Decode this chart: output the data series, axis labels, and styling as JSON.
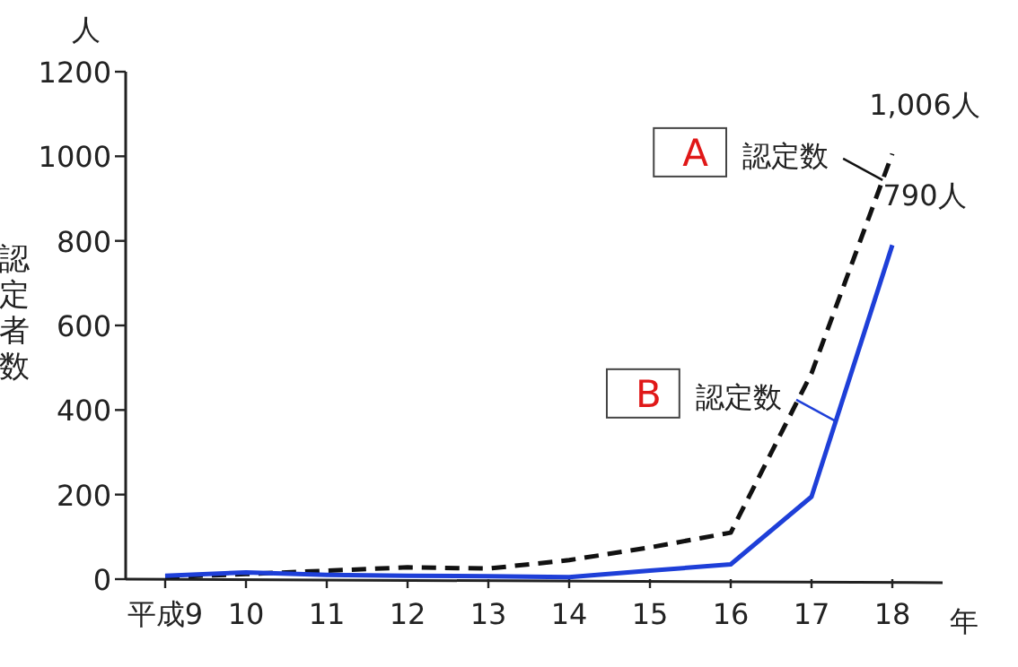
{
  "chart_data": {
    "type": "line",
    "ylabel": "認定者数",
    "xlabel": "年",
    "annotations": [
      "人",
      {
        "text": "1,006人",
        "x": "18",
        "y": 1006
      },
      {
        "text": "790人",
        "x": "18",
        "y": 790
      }
    ],
    "categories": [
      "平成9",
      "10",
      "11",
      "12",
      "13",
      "14",
      "15",
      "16",
      "17",
      "18"
    ],
    "series": [
      {
        "name": "A 認定数",
        "color": "#111111",
        "line_style": "dashed",
        "values": [
          5,
          12,
          20,
          28,
          25,
          45,
          75,
          110,
          487,
          1006
        ]
      },
      {
        "name": "B 認定数",
        "color": "#1e3fd8",
        "line_style": "solid",
        "values": [
          8,
          16,
          10,
          8,
          7,
          5,
          20,
          35,
          195,
          790
        ]
      }
    ],
    "ylim": [
      0,
      1200
    ],
    "yticks": [
      0,
      200,
      400,
      600,
      800,
      1000,
      1200
    ],
    "legend": "right"
  }
}
